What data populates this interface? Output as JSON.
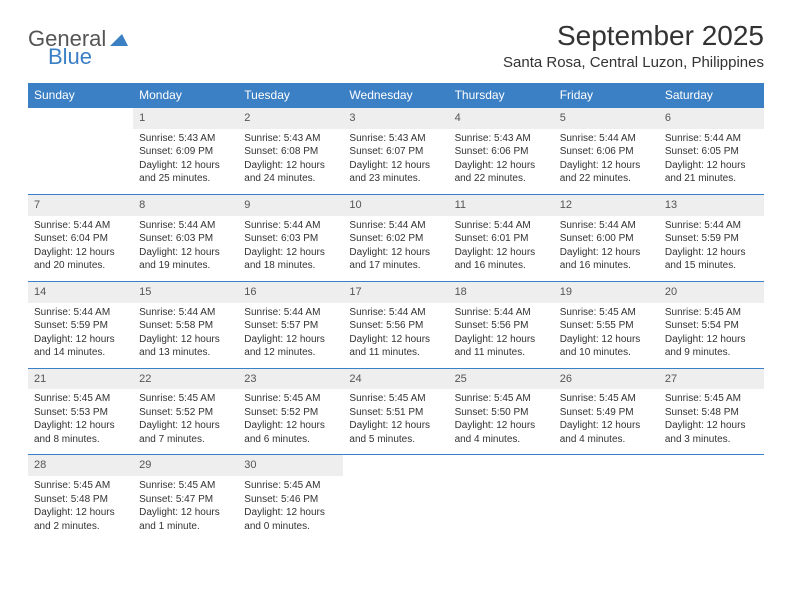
{
  "logo": {
    "part1": "General",
    "part2": "Blue"
  },
  "title": "September 2025",
  "location": "Santa Rosa, Central Luzon, Philippines",
  "colors": {
    "header_bg": "#3b7fc4",
    "header_text": "#ffffff",
    "daynum_bg": "#eeeeee",
    "border": "#3b7fc4",
    "text": "#333333",
    "logo_gray": "#555555",
    "logo_blue": "#3b7fc4"
  },
  "days_of_week": [
    "Sunday",
    "Monday",
    "Tuesday",
    "Wednesday",
    "Thursday",
    "Friday",
    "Saturday"
  ],
  "weeks": [
    [
      null,
      {
        "n": "1",
        "sunrise": "5:43 AM",
        "sunset": "6:09 PM",
        "daylight": "12 hours and 25 minutes."
      },
      {
        "n": "2",
        "sunrise": "5:43 AM",
        "sunset": "6:08 PM",
        "daylight": "12 hours and 24 minutes."
      },
      {
        "n": "3",
        "sunrise": "5:43 AM",
        "sunset": "6:07 PM",
        "daylight": "12 hours and 23 minutes."
      },
      {
        "n": "4",
        "sunrise": "5:43 AM",
        "sunset": "6:06 PM",
        "daylight": "12 hours and 22 minutes."
      },
      {
        "n": "5",
        "sunrise": "5:44 AM",
        "sunset": "6:06 PM",
        "daylight": "12 hours and 22 minutes."
      },
      {
        "n": "6",
        "sunrise": "5:44 AM",
        "sunset": "6:05 PM",
        "daylight": "12 hours and 21 minutes."
      }
    ],
    [
      {
        "n": "7",
        "sunrise": "5:44 AM",
        "sunset": "6:04 PM",
        "daylight": "12 hours and 20 minutes."
      },
      {
        "n": "8",
        "sunrise": "5:44 AM",
        "sunset": "6:03 PM",
        "daylight": "12 hours and 19 minutes."
      },
      {
        "n": "9",
        "sunrise": "5:44 AM",
        "sunset": "6:03 PM",
        "daylight": "12 hours and 18 minutes."
      },
      {
        "n": "10",
        "sunrise": "5:44 AM",
        "sunset": "6:02 PM",
        "daylight": "12 hours and 17 minutes."
      },
      {
        "n": "11",
        "sunrise": "5:44 AM",
        "sunset": "6:01 PM",
        "daylight": "12 hours and 16 minutes."
      },
      {
        "n": "12",
        "sunrise": "5:44 AM",
        "sunset": "6:00 PM",
        "daylight": "12 hours and 16 minutes."
      },
      {
        "n": "13",
        "sunrise": "5:44 AM",
        "sunset": "5:59 PM",
        "daylight": "12 hours and 15 minutes."
      }
    ],
    [
      {
        "n": "14",
        "sunrise": "5:44 AM",
        "sunset": "5:59 PM",
        "daylight": "12 hours and 14 minutes."
      },
      {
        "n": "15",
        "sunrise": "5:44 AM",
        "sunset": "5:58 PM",
        "daylight": "12 hours and 13 minutes."
      },
      {
        "n": "16",
        "sunrise": "5:44 AM",
        "sunset": "5:57 PM",
        "daylight": "12 hours and 12 minutes."
      },
      {
        "n": "17",
        "sunrise": "5:44 AM",
        "sunset": "5:56 PM",
        "daylight": "12 hours and 11 minutes."
      },
      {
        "n": "18",
        "sunrise": "5:44 AM",
        "sunset": "5:56 PM",
        "daylight": "12 hours and 11 minutes."
      },
      {
        "n": "19",
        "sunrise": "5:45 AM",
        "sunset": "5:55 PM",
        "daylight": "12 hours and 10 minutes."
      },
      {
        "n": "20",
        "sunrise": "5:45 AM",
        "sunset": "5:54 PM",
        "daylight": "12 hours and 9 minutes."
      }
    ],
    [
      {
        "n": "21",
        "sunrise": "5:45 AM",
        "sunset": "5:53 PM",
        "daylight": "12 hours and 8 minutes."
      },
      {
        "n": "22",
        "sunrise": "5:45 AM",
        "sunset": "5:52 PM",
        "daylight": "12 hours and 7 minutes."
      },
      {
        "n": "23",
        "sunrise": "5:45 AM",
        "sunset": "5:52 PM",
        "daylight": "12 hours and 6 minutes."
      },
      {
        "n": "24",
        "sunrise": "5:45 AM",
        "sunset": "5:51 PM",
        "daylight": "12 hours and 5 minutes."
      },
      {
        "n": "25",
        "sunrise": "5:45 AM",
        "sunset": "5:50 PM",
        "daylight": "12 hours and 4 minutes."
      },
      {
        "n": "26",
        "sunrise": "5:45 AM",
        "sunset": "5:49 PM",
        "daylight": "12 hours and 4 minutes."
      },
      {
        "n": "27",
        "sunrise": "5:45 AM",
        "sunset": "5:48 PM",
        "daylight": "12 hours and 3 minutes."
      }
    ],
    [
      {
        "n": "28",
        "sunrise": "5:45 AM",
        "sunset": "5:48 PM",
        "daylight": "12 hours and 2 minutes."
      },
      {
        "n": "29",
        "sunrise": "5:45 AM",
        "sunset": "5:47 PM",
        "daylight": "12 hours and 1 minute."
      },
      {
        "n": "30",
        "sunrise": "5:45 AM",
        "sunset": "5:46 PM",
        "daylight": "12 hours and 0 minutes."
      },
      null,
      null,
      null,
      null
    ]
  ],
  "labels": {
    "sunrise": "Sunrise:",
    "sunset": "Sunset:",
    "daylight": "Daylight:"
  }
}
